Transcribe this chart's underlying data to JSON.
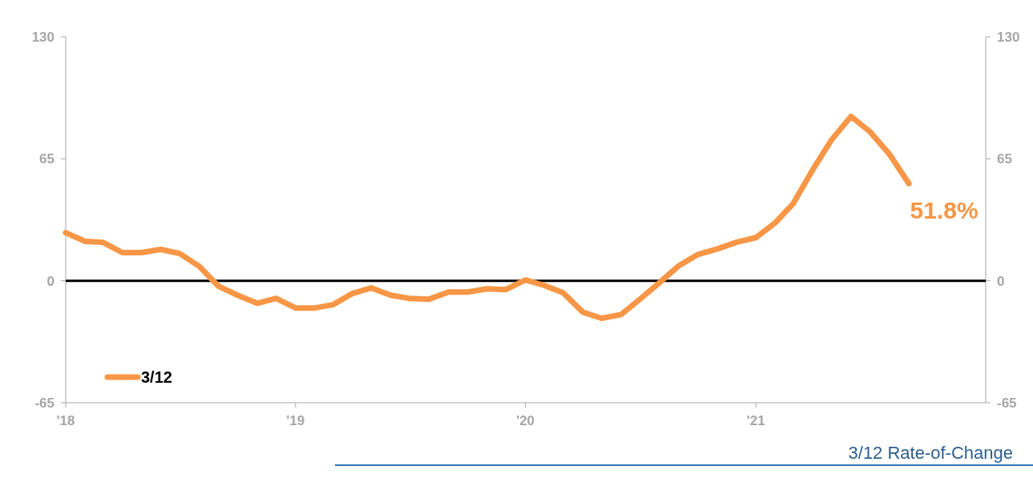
{
  "chart_data": {
    "type": "line",
    "x": [
      "2018-01",
      "2018-02",
      "2018-03",
      "2018-04",
      "2018-05",
      "2018-06",
      "2018-07",
      "2018-08",
      "2018-09",
      "2018-10",
      "2018-11",
      "2018-12",
      "2019-01",
      "2019-02",
      "2019-03",
      "2019-04",
      "2019-05",
      "2019-06",
      "2019-07",
      "2019-08",
      "2019-09",
      "2019-10",
      "2019-11",
      "2019-12",
      "2020-01",
      "2020-02",
      "2020-03",
      "2020-04",
      "2020-05",
      "2020-06",
      "2020-07",
      "2020-08",
      "2020-09",
      "2020-10",
      "2020-11",
      "2020-12",
      "2021-01",
      "2021-02",
      "2021-03",
      "2021-04",
      "2021-05",
      "2021-06",
      "2021-07",
      "2021-08",
      "2021-09"
    ],
    "series": [
      {
        "name": "3/12",
        "color": "#f79646",
        "values": [
          25.6,
          21,
          20.5,
          15,
          15,
          16.7,
          14.5,
          7.7,
          -3,
          -7.7,
          -12,
          -9.4,
          -14.5,
          -14.5,
          -12.8,
          -6.8,
          -3.8,
          -7.7,
          -9.4,
          -9.8,
          -6,
          -6,
          -4.3,
          -4.7,
          0.4,
          -2.6,
          -6.4,
          -16.7,
          -20,
          -18,
          -9.8,
          -1,
          8.1,
          14,
          17,
          20.5,
          23,
          31,
          41,
          59,
          75,
          87.6,
          79.5,
          67.5,
          51.8
        ]
      }
    ],
    "xlim": [
      "2018-01",
      "2022-01"
    ],
    "xticks": [
      {
        "value": "2018-01",
        "label": "'18"
      },
      {
        "value": "2019-01",
        "label": "'19"
      },
      {
        "value": "2020-01",
        "label": "'20"
      },
      {
        "value": "2021-01",
        "label": "'21"
      }
    ],
    "ylim": [
      -65,
      130
    ],
    "yticks": [
      -65,
      0,
      65,
      130
    ],
    "y2lim": [
      -65,
      130
    ],
    "y2ticks": [
      -65,
      0,
      65,
      130
    ],
    "ref_lines": [
      {
        "axis": "y",
        "value": 0,
        "color": "#000000"
      }
    ],
    "annotations": [
      {
        "text": "51.8%",
        "x": "2021-09",
        "y": 51.8
      },
      "3/12 Rate-of-Change"
    ],
    "legend": "bottom left",
    "grid": false
  }
}
